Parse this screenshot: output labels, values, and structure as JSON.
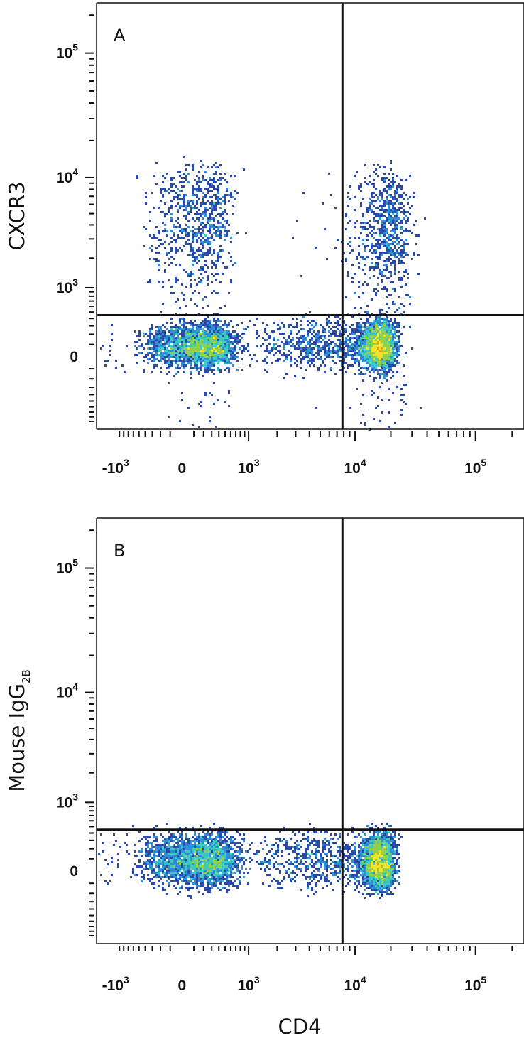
{
  "chart_data": [
    {
      "type": "scatter",
      "panel_label": "A",
      "xlabel": "",
      "ylabel": "CXCR3",
      "x_scale": "biexponential",
      "y_scale": "biexponential",
      "x_ticks": [
        {
          "value": -1000,
          "base": "-10",
          "exp": "3"
        },
        {
          "value": 0,
          "base": "0",
          "exp": ""
        },
        {
          "value": 1000,
          "base": "10",
          "exp": "3"
        },
        {
          "value": 10000,
          "base": "10",
          "exp": "4"
        },
        {
          "value": 100000,
          "base": "10",
          "exp": "5"
        }
      ],
      "y_ticks": [
        {
          "value": 0,
          "base": "0",
          "exp": ""
        },
        {
          "value": 1000,
          "base": "10",
          "exp": "3"
        },
        {
          "value": 10000,
          "base": "10",
          "exp": "4"
        },
        {
          "value": 100000,
          "base": "10",
          "exp": "5"
        }
      ],
      "xlim": [
        -1600,
        250000
      ],
      "ylim": [
        -1100,
        250000
      ],
      "quadrant_gate": {
        "x": 7800,
        "y": 450
      },
      "populations": [
        {
          "name": "",
          "center": [
            150,
            80
          ],
          "spread": [
            230,
            120
          ],
          "density": "high"
        },
        {
          "name": "",
          "center": [
            15500,
            80
          ],
          "spread": [
            2800,
            140
          ],
          "density": "high"
        },
        {
          "name": "",
          "center": [
            150,
            4000
          ],
          "spread": [
            220,
            4000
          ],
          "density": "medium"
        },
        {
          "name": "",
          "center": [
            18000,
            3000
          ],
          "spread": [
            5000,
            3500
          ],
          "density": "medium"
        },
        {
          "name": "",
          "center": [
            3500,
            100
          ],
          "spread": [
            3000,
            150
          ],
          "density": "low"
        }
      ],
      "colormap": [
        "#2b4aa8",
        "#2f8fd6",
        "#3cc9c0",
        "#8fd14f",
        "#f2e22a",
        "#f39a1f",
        "#e8281c"
      ]
    },
    {
      "type": "scatter",
      "panel_label": "B",
      "xlabel": "CD4",
      "ylabel": "Mouse IgG",
      "ylabel_sub": "2B",
      "x_scale": "biexponential",
      "y_scale": "biexponential",
      "x_ticks": [
        {
          "value": -1000,
          "base": "-10",
          "exp": "3"
        },
        {
          "value": 0,
          "base": "0",
          "exp": ""
        },
        {
          "value": 1000,
          "base": "10",
          "exp": "3"
        },
        {
          "value": 10000,
          "base": "10",
          "exp": "4"
        },
        {
          "value": 100000,
          "base": "10",
          "exp": "5"
        }
      ],
      "y_ticks": [
        {
          "value": 0,
          "base": "0",
          "exp": ""
        },
        {
          "value": 1000,
          "base": "10",
          "exp": "3"
        },
        {
          "value": 10000,
          "base": "10",
          "exp": "4"
        },
        {
          "value": 100000,
          "base": "10",
          "exp": "5"
        }
      ],
      "xlim": [
        -1600,
        250000
      ],
      "ylim": [
        -1100,
        250000
      ],
      "quadrant_gate": {
        "x": 7800,
        "y": 450
      },
      "populations": [
        {
          "name": "",
          "center": [
            150,
            80
          ],
          "spread": [
            260,
            150
          ],
          "density": "high"
        },
        {
          "name": "",
          "center": [
            15500,
            70
          ],
          "spread": [
            2800,
            160
          ],
          "density": "high"
        },
        {
          "name": "",
          "center": [
            3500,
            90
          ],
          "spread": [
            3200,
            170
          ],
          "density": "low"
        }
      ],
      "colormap": [
        "#2b4aa8",
        "#2f8fd6",
        "#3cc9c0",
        "#8fd14f",
        "#f2e22a",
        "#f39a1f",
        "#e8281c"
      ]
    }
  ]
}
